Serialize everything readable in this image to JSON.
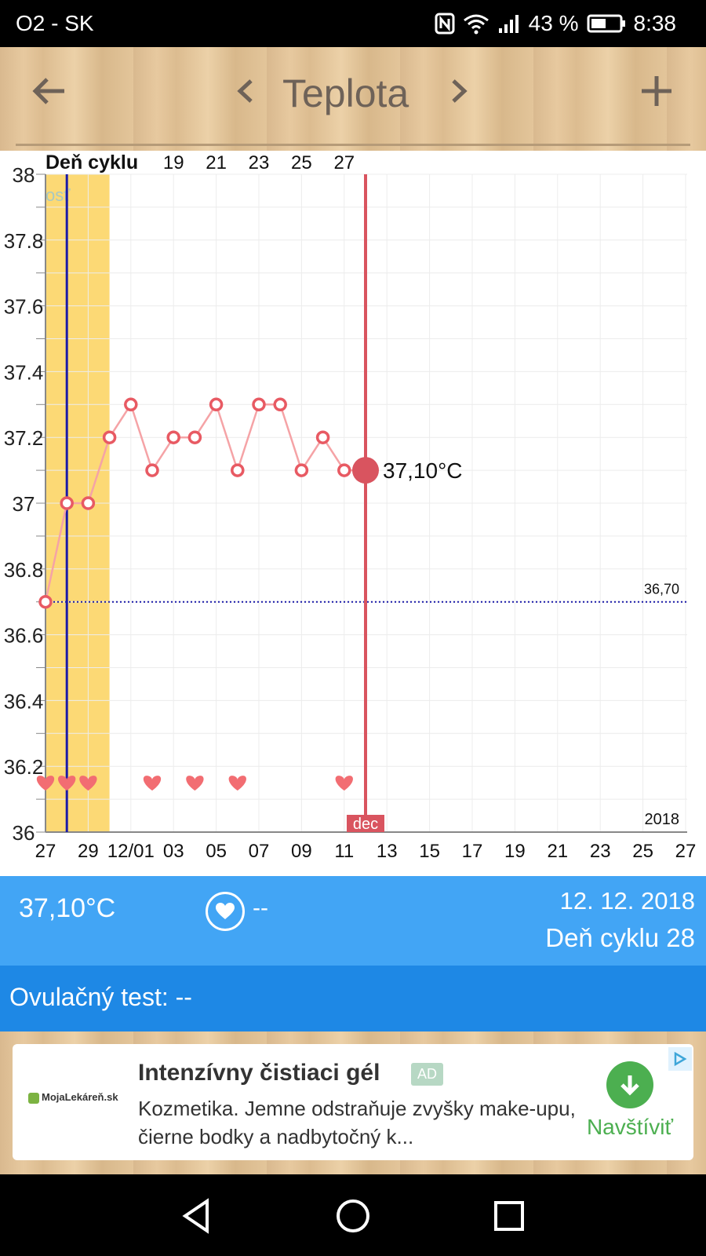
{
  "status_bar": {
    "carrier": "O2 - SK",
    "battery": "43 %",
    "time": "8:38",
    "icons": [
      "nfc-icon",
      "wifi-icon",
      "signal-icon",
      "battery-icon"
    ]
  },
  "app_bar": {
    "title": "Teplota",
    "back_icon": "back-arrow-icon",
    "prev_icon": "chevron-left-icon",
    "next_icon": "chevron-right-icon",
    "add_icon": "plus-icon"
  },
  "chart_data": {
    "type": "line",
    "top_axis_label": "Deň cyklu",
    "top_ticks": [
      "19",
      "21",
      "23",
      "25",
      "27"
    ],
    "y_ticks": [
      "38",
      "37.8",
      "37.6",
      "37.4",
      "37.2",
      "37",
      "36.8",
      "36.6",
      "36.4",
      "36.2",
      "36"
    ],
    "ylim": [
      36,
      38
    ],
    "x_ticks": [
      "27",
      "29",
      "12/01",
      "03",
      "05",
      "07",
      "09",
      "11",
      "13",
      "15",
      "17",
      "19",
      "21",
      "23",
      "25",
      "27"
    ],
    "year_label": "2018",
    "month_label": "dec",
    "overlay_text": "osť",
    "reference_line": {
      "label": "36,70",
      "value": 36.7
    },
    "series": [
      {
        "values": [
          36.7,
          37.0,
          37.0,
          37.2,
          37.3,
          37.1,
          37.2,
          37.2,
          37.3,
          37.1,
          37.3,
          37.3,
          37.1,
          37.2,
          37.1,
          37.1
        ]
      }
    ],
    "point_days": [
      0,
      1,
      2,
      3,
      4,
      5,
      6,
      7,
      8,
      9,
      10,
      11,
      12,
      13,
      14,
      15
    ],
    "highlight_band": {
      "from_day": 0,
      "to_day": 3,
      "color": "#fcd975"
    },
    "vertical_marker_day": 1,
    "selected": {
      "day": 15,
      "label": "37,10°C"
    },
    "hearts_days": [
      0,
      1,
      2,
      5,
      7,
      9,
      14
    ],
    "heart_level": 36.15,
    "colors": {
      "line": "#f5a3a6",
      "point": "#e85a63",
      "selected": "#d9545f",
      "marker": "#1a1aa8",
      "band": "#fcd975"
    }
  },
  "info_bar": {
    "temperature": "37,10°C",
    "heart_value": "--",
    "date": "12. 12. 2018",
    "cycle_day": "Deň cyklu 28"
  },
  "ovulation_bar": {
    "text": "Ovulačný test: --"
  },
  "ad": {
    "logo": "MojaLekáreň.sk",
    "title": "Intenzívny čistiaci gél",
    "badge": "AD",
    "text": "Kozmetika. Jemne odstraňuje zvyšky make-upu, čierne bodky a nadbytočný k...",
    "cta": "Navštíviť"
  },
  "nav_bar": {
    "icons": [
      "back-triangle-icon",
      "home-circle-icon",
      "recents-square-icon"
    ]
  }
}
